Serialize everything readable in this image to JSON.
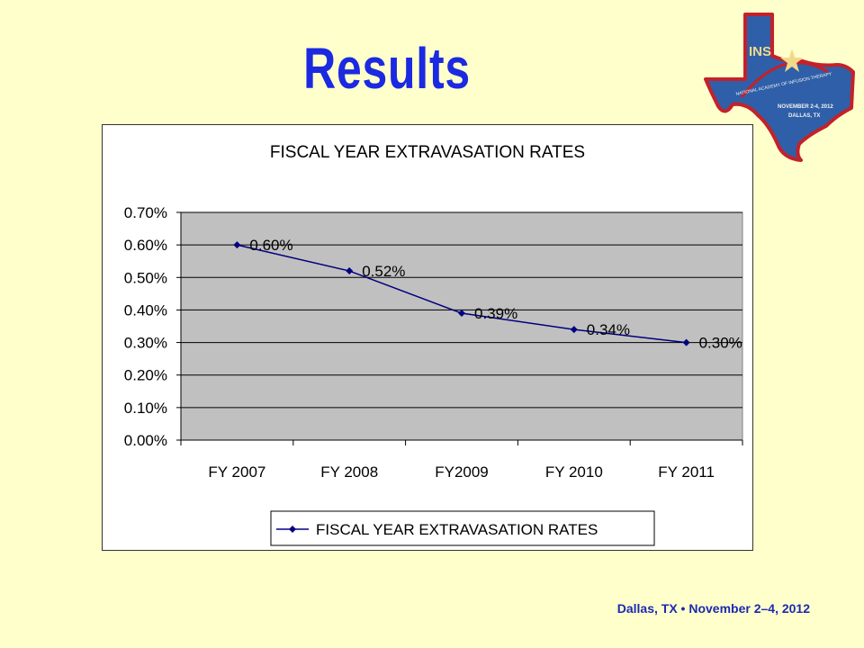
{
  "slide": {
    "title": "Results",
    "footer": "Dallas, TX • November 2–4, 2012",
    "logo": {
      "icon": "texas-state-logo",
      "text_ins": "INS",
      "text_arc": "NATIONAL ACADEMY OF INFUSION THERAPY",
      "text_date": "NOVEMBER 2-4, 2012",
      "text_city": "DALLAS, TX"
    }
  },
  "colors": {
    "background": "#FFFFCC",
    "title": "#1B2AE0",
    "plot_area": "#C0C0C0",
    "series": "#000080",
    "logo_fill": "#2F5FA8",
    "logo_outline": "#C4212A"
  },
  "chart_data": {
    "type": "line",
    "title": "FISCAL YEAR EXTRAVASATION RATES",
    "categories": [
      "FY 2007",
      "FY 2008",
      "FY2009",
      "FY 2010",
      "FY 2011"
    ],
    "series": [
      {
        "name": "FISCAL YEAR EXTRAVASATION RATES",
        "values": [
          0.6,
          0.52,
          0.39,
          0.34,
          0.3
        ],
        "labels": [
          "0.60%",
          "0.52%",
          "0.39%",
          "0.34%",
          "0.30%"
        ]
      }
    ],
    "ylim": [
      0,
      0.7
    ],
    "yticks": [
      "0.00%",
      "0.10%",
      "0.20%",
      "0.30%",
      "0.40%",
      "0.50%",
      "0.60%",
      "0.70%"
    ],
    "xlabel": "",
    "ylabel": "",
    "grid": true,
    "legend": "bottom"
  }
}
